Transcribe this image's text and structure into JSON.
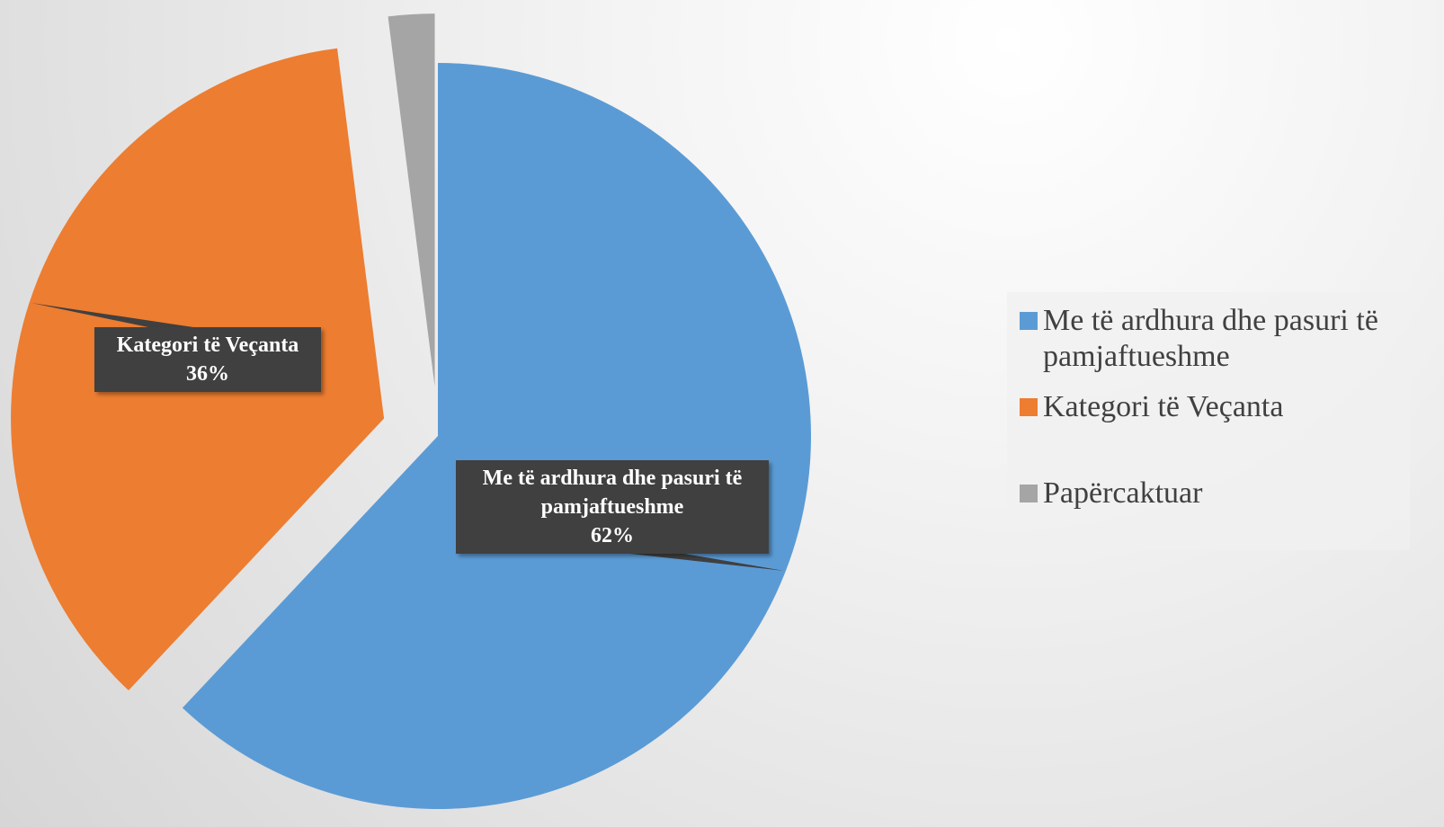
{
  "chart_data": {
    "type": "pie",
    "categories": [
      "Me të ardhura dhe pasuri të pamjaftueshme",
      "Kategori të Veçanta",
      "Papërcaktuar"
    ],
    "values": [
      62,
      36,
      2
    ],
    "value_labels": [
      "62%",
      "36%",
      null
    ],
    "colors": [
      "#5b9bd5",
      "#ed7d31",
      "#a5a5a5"
    ],
    "legend": "right"
  }
}
